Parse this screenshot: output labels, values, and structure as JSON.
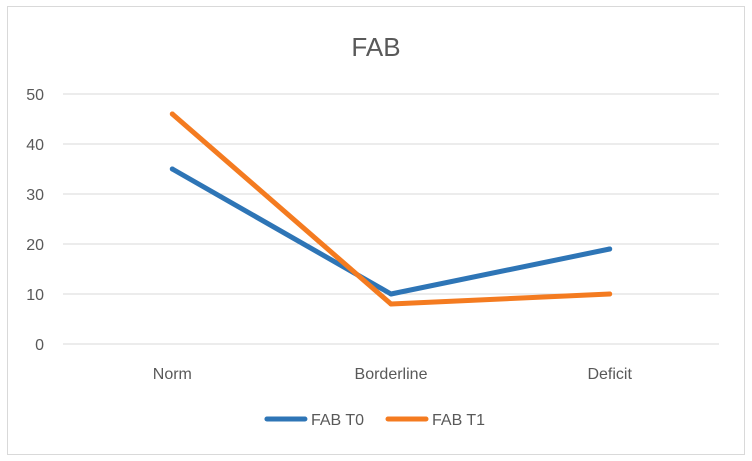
{
  "chart_data": {
    "type": "line",
    "title": "FAB",
    "xlabel": "",
    "ylabel": "",
    "categories": [
      "Norm",
      "Borderline",
      "Deficit"
    ],
    "yticks": [
      0,
      10,
      20,
      30,
      40,
      50
    ],
    "ylim": [
      0,
      50
    ],
    "grid": true,
    "legend_position": "bottom",
    "series": [
      {
        "name": "FAB T0",
        "values": [
          35,
          10,
          19
        ],
        "color": "#2E75B6"
      },
      {
        "name": "FAB T1",
        "values": [
          46,
          8,
          10
        ],
        "color": "#F47B20"
      }
    ],
    "colors": {
      "gridline": "#D9D9D9",
      "text": "#595959",
      "border": "#D9D9D9"
    }
  }
}
